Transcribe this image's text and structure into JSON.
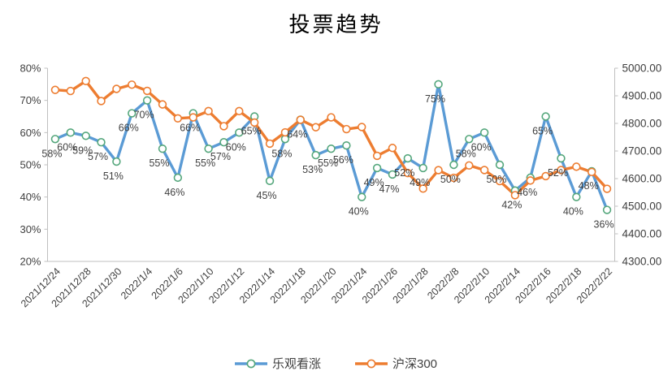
{
  "title": "投票趋势",
  "legend": {
    "items": [
      {
        "label": "乐观看涨",
        "line_color": "#5B9BD5",
        "marker_stroke": "#55A77C"
      },
      {
        "label": "沪深300",
        "line_color": "#ED7D31",
        "marker_stroke": "#ED7D31"
      }
    ]
  },
  "colors": {
    "optimistic_line": "#5B9BD5",
    "optimistic_marker_stroke": "#55A77C",
    "csi300_line": "#ED7D31",
    "axis_line": "#BFBFBF",
    "tick_text": "#3f3f3f",
    "label_text": "#404040"
  },
  "chart_data": {
    "type": "line",
    "title": "投票趋势",
    "n_points": 37,
    "x_tick_labels": [
      "2021/12/24",
      "2021/12/28",
      "2021/12/30",
      "2022/1/4",
      "2022/1/6",
      "2022/1/10",
      "2022/1/12",
      "2022/1/14",
      "2022/1/18",
      "2022/1/20",
      "2022/1/24",
      "2022/1/26",
      "2022/1/28",
      "2022/2/8",
      "2022/2/10",
      "2022/2/14",
      "2022/2/16",
      "2022/2/18",
      "2022/2/22"
    ],
    "x_tick_every": 2,
    "grid": false,
    "legend_position": "bottom",
    "left_axis": {
      "min": 20,
      "max": 80,
      "step": 10,
      "tick_labels": [
        "80%",
        "70%",
        "60%",
        "50%",
        "40%",
        "30%",
        "20%"
      ]
    },
    "right_axis": {
      "min": 4300,
      "max": 5000,
      "step": 100,
      "tick_labels": [
        "5000.00",
        "4900.00",
        "4800.00",
        "4700.00",
        "4600.00",
        "4500.00",
        "4400.00",
        "4300.00"
      ]
    },
    "series": [
      {
        "name": "乐观看涨",
        "axis": "left",
        "color": "#5B9BD5",
        "marker_stroke": "#55A77C",
        "values": [
          58,
          60,
          59,
          57,
          51,
          66,
          70,
          55,
          46,
          66,
          55,
          57,
          60,
          65,
          45,
          58,
          64,
          53,
          55,
          56,
          40,
          49,
          47,
          52,
          49,
          75,
          50,
          58,
          60,
          50,
          42,
          46,
          65,
          52,
          40,
          48,
          36
        ],
        "data_labels": [
          "58%",
          "60%",
          "59%",
          "57%",
          "51%",
          "66%",
          "70%",
          "55%",
          "46%",
          "66%",
          "55%",
          "57%",
          "60%",
          "65%",
          "45%",
          "58%",
          "64%",
          "53%",
          "55%",
          "56%",
          "40%",
          "49%",
          "47%",
          "52%",
          "49%",
          "75%",
          "50%",
          "58%",
          "60%",
          "50%",
          "42%",
          "46%",
          "65%",
          "52%",
          "40%",
          "48%",
          "36%"
        ]
      },
      {
        "name": "沪深300",
        "axis": "right",
        "color": "#ED7D31",
        "marker_stroke": "#ED7D31",
        "values": [
          4921.35,
          4917.38,
          4953.5,
          4881.0,
          4925.0,
          4940.37,
          4917.77,
          4868.74,
          4818.23,
          4821.77,
          4844.57,
          4790.0,
          4844.49,
          4803.0,
          4726.73,
          4767.49,
          4813.0,
          4786.0,
          4822.0,
          4779.31,
          4787.0,
          4682.59,
          4711.04,
          4620.0,
          4563.77,
          4630.63,
          4602.68,
          4647.7,
          4631.0,
          4591.0,
          4540.0,
          4593.0,
          4609.0,
          4631.0,
          4643.0,
          4624.0,
          4563.0
        ],
        "data_labels": []
      }
    ]
  }
}
